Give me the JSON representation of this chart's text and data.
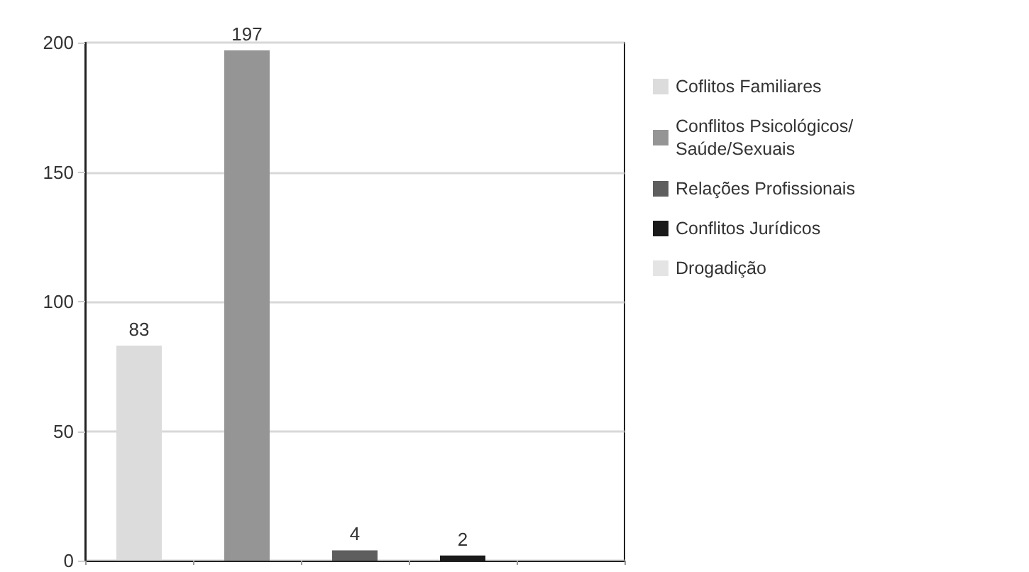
{
  "chart_data": {
    "type": "bar",
    "categories": [
      null,
      null,
      null,
      null,
      null
    ],
    "series": [
      {
        "name": "Coflitos Familiares",
        "color": "#dcdcdc",
        "values": [
          83,
          null,
          null,
          null,
          null
        ],
        "value_labels": [
          "83",
          null,
          null,
          null,
          null
        ]
      },
      {
        "name": "Conflitos Psicológicos/ Saúde/Sexuais",
        "color": "#959595",
        "values": [
          null,
          197,
          null,
          null,
          null
        ],
        "value_labels": [
          null,
          "197",
          null,
          null,
          null
        ]
      },
      {
        "name": "Relações Profissionais",
        "color": "#5e5e5e",
        "values": [
          null,
          null,
          4,
          null,
          null
        ],
        "value_labels": [
          null,
          null,
          "4",
          null,
          null
        ]
      },
      {
        "name": "Conflitos Jurídicos",
        "color": "#1a1a1a",
        "values": [
          null,
          null,
          null,
          2,
          null
        ],
        "value_labels": [
          null,
          null,
          null,
          "2",
          null
        ]
      },
      {
        "name": "Drogadição",
        "color": "#e4e4e4",
        "values": [
          null,
          null,
          null,
          null,
          0
        ],
        "value_labels": [
          null,
          null,
          null,
          null,
          null
        ]
      }
    ],
    "ylim": [
      0,
      200
    ],
    "yticks": [
      0,
      50,
      100,
      150,
      200
    ],
    "grid": "y",
    "legend": "right"
  }
}
